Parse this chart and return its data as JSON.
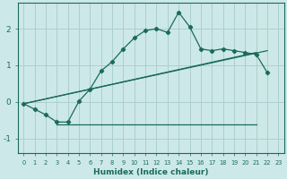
{
  "xlabel": "Humidex (Indice chaleur)",
  "background_color": "#cde8e8",
  "grid_color": "#aecfcf",
  "line_color": "#1a6b5a",
  "ylim": [
    -1.4,
    2.7
  ],
  "xlim": [
    -0.5,
    23.5
  ],
  "x_ticks": [
    0,
    1,
    2,
    3,
    4,
    5,
    6,
    7,
    8,
    9,
    10,
    11,
    12,
    13,
    14,
    15,
    16,
    17,
    18,
    19,
    20,
    21,
    22,
    23
  ],
  "y_ticks": [
    -1,
    0,
    1,
    2
  ],
  "line_main_x": [
    0,
    1,
    2,
    3,
    4,
    5,
    6,
    7,
    8,
    9,
    10,
    11,
    12,
    13,
    14,
    15,
    16,
    17,
    18,
    19,
    20,
    21,
    22
  ],
  "line_main_y": [
    -0.05,
    -0.2,
    -0.35,
    -0.55,
    -0.55,
    0.02,
    0.35,
    0.85,
    1.1,
    1.45,
    1.75,
    1.95,
    2.0,
    1.9,
    2.45,
    2.05,
    1.45,
    1.4,
    1.45,
    1.4,
    1.35,
    1.3,
    0.8
  ],
  "line_flat_x": [
    3,
    4,
    5,
    6,
    7,
    8,
    9,
    10,
    11,
    12,
    13,
    14,
    15,
    16,
    17,
    18,
    19,
    20,
    21
  ],
  "line_flat_y": [
    -0.62,
    -0.62,
    -0.62,
    -0.62,
    -0.62,
    -0.62,
    -0.62,
    -0.62,
    -0.62,
    -0.62,
    -0.62,
    -0.62,
    -0.62,
    -0.62,
    -0.62,
    -0.62,
    -0.62,
    -0.62,
    -0.62
  ],
  "line_trend_x": [
    0,
    21
  ],
  "line_trend_y": [
    -0.05,
    1.35
  ],
  "line_trend2_x": [
    0,
    22
  ],
  "line_trend2_y": [
    -0.05,
    1.4
  ]
}
